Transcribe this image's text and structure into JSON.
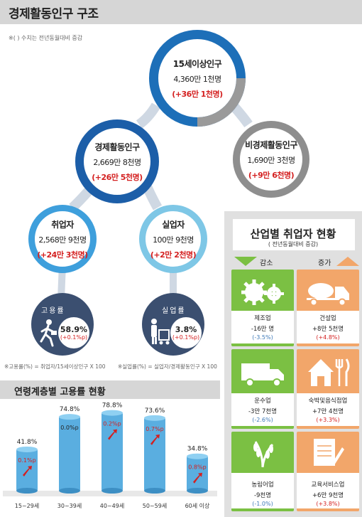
{
  "header": {
    "title": "경제활동인구 구조"
  },
  "note": "※( ) 수치는 전년동월대비 증감",
  "nodes": {
    "pop15": {
      "title": "15세이상인구",
      "value": "4,360만 1천명",
      "change": "(+36만 1천명)"
    },
    "active": {
      "title": "경제활동인구",
      "value": "2,669만 8천명",
      "change": "(+26만 5천명)"
    },
    "inactive": {
      "title": "비경제활동인구",
      "value": "1,690만 3천명",
      "change": "(+9만 6천명)"
    },
    "employed": {
      "title": "취업자",
      "value": "2,568만 9천명",
      "change": "(+24만 3천명)"
    },
    "unemployed": {
      "title": "실업자",
      "value": "100만 9천명",
      "change": "(+2만 2천명)"
    }
  },
  "rates": {
    "employment": {
      "label": "고용률",
      "value": "58.9%",
      "change": "(+0.1%p)",
      "formula": "※고용률(%) = 취업자/15세이상인구 X 100"
    },
    "unemployment": {
      "label": "실업률",
      "value": "3.8%",
      "change": "(+0.1%p)",
      "formula": "※실업률(%) = 실업자/경제활동인구 X 100"
    }
  },
  "age_section": {
    "title": "연령계층별 고용률 현황"
  },
  "chart_data": {
    "type": "bar",
    "title": "연령계층별 고용률 현황",
    "categories": [
      "15~29세",
      "30~39세",
      "40~49세",
      "50~59세",
      "60세 이상"
    ],
    "values": [
      41.8,
      74.8,
      78.8,
      73.6,
      34.8
    ],
    "value_labels": [
      "41.8%",
      "74.8%",
      "78.8%",
      "73.6%",
      "34.8%"
    ],
    "changes": [
      "0.1%p",
      "0.0%p",
      "0.2%p",
      "0.7%p",
      "0.8%p"
    ],
    "change_direction": [
      "up",
      "flat",
      "up",
      "up",
      "up"
    ],
    "ylim": [
      0,
      85
    ],
    "colors": {
      "bar": "#5aaee0",
      "up": "#d42020",
      "flat": "#222222"
    }
  },
  "industry": {
    "title": "산업별 취업자 현황",
    "subtitle": "( 전년동월대비 증감)",
    "decrease_label": "감소",
    "increase_label": "증가",
    "decrease": [
      {
        "name": "제조업",
        "value": "-16만 명",
        "change": "(-3.5%)",
        "icon": "gears-icon"
      },
      {
        "name": "운수업",
        "value": "-3만 7천명",
        "change": "(-2.6%)",
        "icon": "truck-icon"
      },
      {
        "name": "농림어업",
        "value": "-9천명",
        "change": "(-1.0%)",
        "icon": "rice-plant-icon"
      }
    ],
    "increase": [
      {
        "name": "건설업",
        "value": "+8만 5천명",
        "change": "(+4.8%)",
        "icon": "mixer-truck-icon"
      },
      {
        "name": "숙박및음식점업",
        "value": "+7만 4천명",
        "change": "(+3.3%)",
        "icon": "house-cutlery-icon"
      },
      {
        "name": "교육서비스업",
        "value": "+6만 9천명",
        "change": "(+3.8%)",
        "icon": "notebook-pen-icon"
      }
    ],
    "colors": {
      "decrease": "#7bc043",
      "increase": "#f2a66a"
    }
  }
}
